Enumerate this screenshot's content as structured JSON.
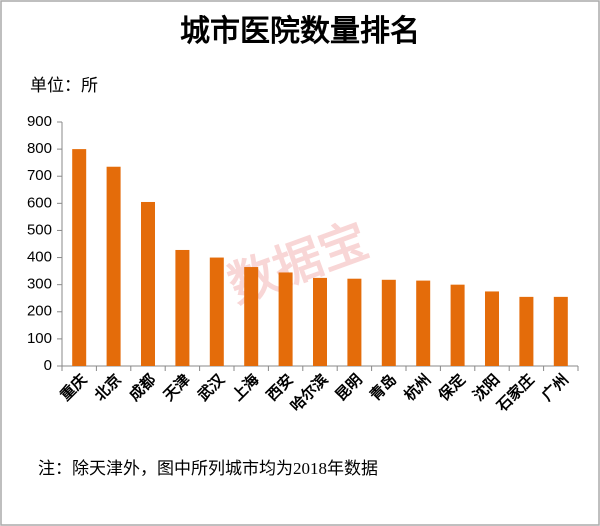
{
  "chart_data": {
    "type": "bar",
    "title": "城市医院数量排名",
    "unit_label": "单位：所",
    "note": "注：除天津外，图中所列城市均为2018年数据",
    "watermark": "数据宝",
    "categories": [
      "重庆",
      "北京",
      "成都",
      "天津",
      "武汉",
      "上海",
      "西安",
      "哈尔滨",
      "昆明",
      "青岛",
      "杭州",
      "保定",
      "沈阳",
      "石家庄",
      "广州"
    ],
    "values": [
      800,
      735,
      605,
      428,
      400,
      365,
      345,
      325,
      322,
      318,
      315,
      300,
      275,
      255,
      255
    ],
    "color": "#e46c0a",
    "ylim": [
      0,
      900
    ],
    "yticks": [
      0,
      100,
      200,
      300,
      400,
      500,
      600,
      700,
      800,
      900
    ],
    "grid": false
  }
}
